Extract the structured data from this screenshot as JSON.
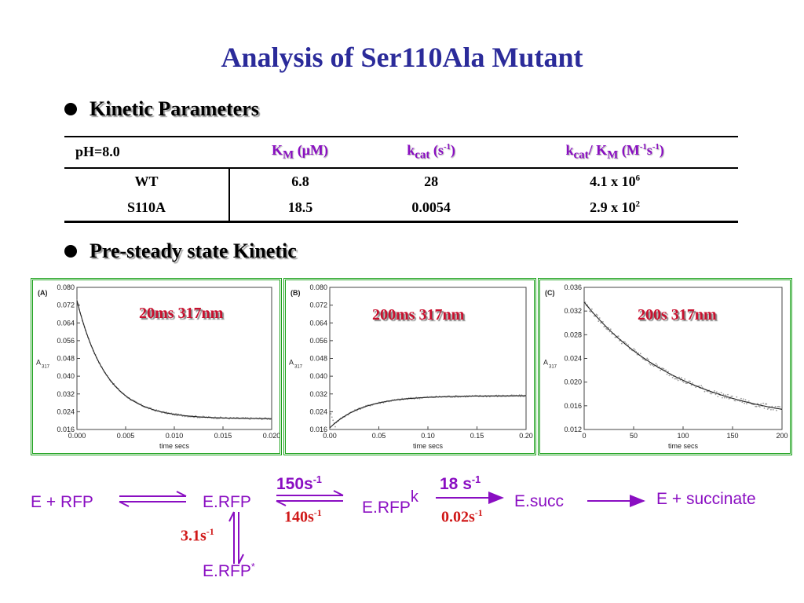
{
  "title": "Analysis of Ser110Ala Mutant",
  "bullets": {
    "kinetic": "Kinetic Parameters",
    "presteady": "Pre-steady state Kinetic"
  },
  "table": {
    "ph_label": "pH=8.0",
    "col_km": "K",
    "col_km_sub": "M",
    "col_km_unit": " (μM)",
    "col_kcat": "k",
    "col_kcat_sub": "cat",
    "col_kcat_unit_a": " (s",
    "col_kcat_unit_sup": "-1",
    "col_kcat_unit_b": ")",
    "col_ratio_k": "k",
    "col_ratio_cat": "cat",
    "col_ratio_slash": "/ K",
    "col_ratio_m": "M",
    "col_ratio_unit_a": " (M",
    "col_ratio_sup1": "-1",
    "col_ratio_unit_b": "s",
    "col_ratio_sup2": "-1",
    "col_ratio_unit_c": ")",
    "rows": [
      {
        "name": "WT",
        "km": "6.8",
        "kcat": "28",
        "ratio_base": "4.1 x 10",
        "ratio_exp": "6"
      },
      {
        "name": "S110A",
        "km": "18.5",
        "kcat": "0.0054",
        "ratio_base": "2.9 x 10",
        "ratio_exp": "2"
      }
    ]
  },
  "colors": {
    "title": "#2b2b9a",
    "purple": "#8a0ec2",
    "red": "#d01818",
    "frame": "#1aa01a"
  },
  "chart_data": [
    {
      "type": "scatter",
      "panel": "(A)",
      "annotation": "20ms 317nm",
      "xlabel": "time secs",
      "ylabel": "A",
      "ylabel_sub": "317",
      "xlim": [
        0,
        0.02
      ],
      "ylim": [
        0.016,
        0.08
      ],
      "xticks": [
        0.0,
        0.005,
        0.01,
        0.015,
        0.02
      ],
      "xtick_labels": [
        "0.000",
        "0.005",
        "0.010",
        "0.015",
        "0.020"
      ],
      "yticks": [
        0.016,
        0.024,
        0.032,
        0.04,
        0.048,
        0.056,
        0.064,
        0.072,
        0.08
      ],
      "ytick_labels": [
        "0.016",
        "0.024",
        "0.032",
        "0.040",
        "0.048",
        "0.056",
        "0.064",
        "0.072",
        "0.080"
      ],
      "fit": {
        "model": "exp",
        "offset": 0.0208,
        "amplitude": 0.0533,
        "rate": 327,
        "rise": false
      },
      "fit_x": [
        0.0,
        0.001,
        0.002,
        0.003,
        0.004,
        0.005,
        0.006,
        0.008,
        0.01,
        0.012,
        0.014,
        0.016,
        0.018,
        0.02
      ],
      "fit_y": [
        0.0741,
        0.0592,
        0.0484,
        0.0406,
        0.035,
        0.0309,
        0.0281,
        0.0246,
        0.0228,
        0.0218,
        0.0213,
        0.0211,
        0.0209,
        0.0209
      ]
    },
    {
      "type": "scatter",
      "panel": "(B)",
      "annotation": "200ms 317nm",
      "xlabel": "time secs",
      "ylabel": "A",
      "ylabel_sub": "317",
      "xlim": [
        0,
        0.2
      ],
      "ylim": [
        0.016,
        0.08
      ],
      "xticks": [
        0.0,
        0.05,
        0.1,
        0.15,
        0.2
      ],
      "xtick_labels": [
        "0.00",
        "0.05",
        "0.10",
        "0.15",
        "0.20"
      ],
      "yticks": [
        0.016,
        0.024,
        0.032,
        0.04,
        0.048,
        0.056,
        0.064,
        0.072,
        0.08
      ],
      "ytick_labels": [
        "0.016",
        "0.024",
        "0.032",
        "0.040",
        "0.048",
        "0.056",
        "0.064",
        "0.072",
        "0.080"
      ],
      "fit": {
        "model": "exp",
        "offset": 0.0312,
        "amplitude": 0.0145,
        "rate": 30,
        "rise": true
      },
      "fit_x": [
        0.0,
        0.01,
        0.02,
        0.04,
        0.06,
        0.08,
        0.1,
        0.12,
        0.15,
        0.2
      ],
      "fit_y": [
        0.0167,
        0.0205,
        0.0233,
        0.0268,
        0.0288,
        0.0299,
        0.0305,
        0.0308,
        0.031,
        0.0312
      ]
    },
    {
      "type": "scatter",
      "panel": "(C)",
      "annotation": "200s 317nm",
      "xlabel": "time secs",
      "ylabel": "A",
      "ylabel_sub": "317",
      "xlim": [
        0,
        200
      ],
      "ylim": [
        0.012,
        0.036
      ],
      "xticks": [
        0,
        50,
        100,
        150,
        200
      ],
      "xtick_labels": [
        "0",
        "50",
        "100",
        "150",
        "200"
      ],
      "yticks": [
        0.012,
        0.016,
        0.02,
        0.024,
        0.028,
        0.032,
        0.036
      ],
      "ytick_labels": [
        "0.012",
        "0.016",
        "0.020",
        "0.024",
        "0.028",
        "0.032",
        "0.036"
      ],
      "fit": {
        "model": "exp",
        "offset": 0.0125,
        "amplitude": 0.021,
        "rate": 0.0099,
        "rise": false
      },
      "fit_x": [
        0,
        25,
        50,
        75,
        100,
        125,
        150,
        175,
        200
      ],
      "fit_y": [
        0.0335,
        0.0288,
        0.0253,
        0.0226,
        0.0204,
        0.0186,
        0.0172,
        0.0162,
        0.0155
      ]
    }
  ],
  "scheme": {
    "e_rfp": "E + RFP",
    "erfp": "E.RFP",
    "erfp2": "E.RFP",
    "erfp2_sup": "k",
    "esucc": "E.succ",
    "product": "E + succinate",
    "erfp_star": "E.RFP",
    "erfp_star_sup": "*",
    "rate_150": "150s",
    "rate_150_sup": "-1",
    "rate_140": "140s",
    "rate_140_sup": "-1",
    "rate_18": "18 s",
    "rate_18_sup": "-1",
    "rate_002": "0.02s",
    "rate_002_sup": "-1",
    "rate_31": "3.1s",
    "rate_31_sup": "-1"
  }
}
